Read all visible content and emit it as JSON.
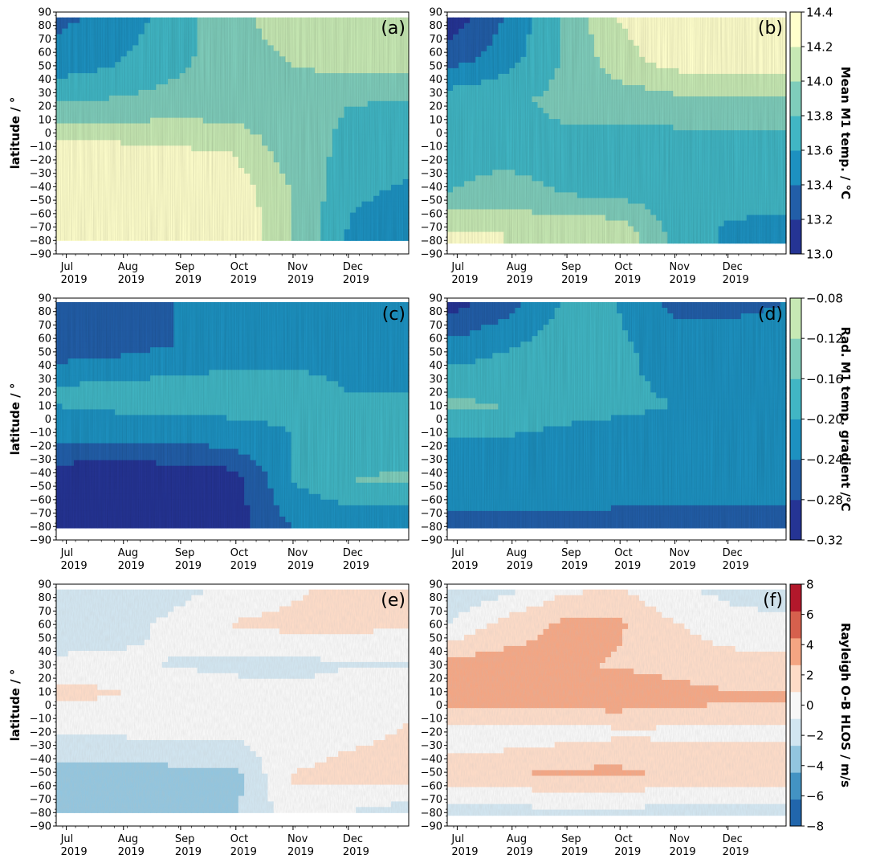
{
  "chart_data": [
    {
      "panel": "(a)",
      "type": "heatmap",
      "ylabel": "latitude / °",
      "x_ticks": [
        "Jul 2019",
        "Aug 2019",
        "Sep 2019",
        "Oct 2019",
        "Nov 2019",
        "Dec 2019"
      ],
      "y_range": [
        -90,
        90
      ],
      "data_coverage_lat": [
        -80,
        86
      ],
      "colormap": "YlGnBu_r",
      "clim": [
        13.0,
        14.4
      ],
      "shared_colorbar": "mean-temp",
      "field_description_rows": [
        {
          "lat": 86,
          "values": [
            13.35,
            13.45,
            13.7,
            13.95,
            14.1,
            14.15,
            14.2
          ]
        },
        {
          "lat": 50,
          "values": [
            13.5,
            13.6,
            13.75,
            13.9,
            14.0,
            14.05,
            14.05
          ]
        },
        {
          "lat": 20,
          "values": [
            13.85,
            13.85,
            13.9,
            13.9,
            13.85,
            13.8,
            13.75
          ]
        },
        {
          "lat": -15,
          "values": [
            14.3,
            14.3,
            14.25,
            14.2,
            13.9,
            13.75,
            13.7
          ]
        },
        {
          "lat": -45,
          "values": [
            14.4,
            14.4,
            14.4,
            14.35,
            14.0,
            13.65,
            13.55
          ]
        },
        {
          "lat": -80,
          "values": [
            14.4,
            14.4,
            14.4,
            14.4,
            14.0,
            13.55,
            13.4
          ]
        }
      ]
    },
    {
      "panel": "(b)",
      "type": "heatmap",
      "x_ticks": [
        "Jul 2019",
        "Aug 2019",
        "Sep 2019",
        "Oct 2019",
        "Nov 2019",
        "Dec 2019"
      ],
      "y_range": [
        -90,
        90
      ],
      "data_coverage_lat": [
        -82,
        86
      ],
      "colormap": "YlGnBu_r",
      "clim": [
        13.0,
        14.4
      ],
      "shared_colorbar": "mean-temp",
      "field_description_rows": [
        {
          "lat": 86,
          "values": [
            13.05,
            13.4,
            13.8,
            14.2,
            14.4,
            14.4,
            14.4
          ]
        },
        {
          "lat": 55,
          "values": [
            13.3,
            13.5,
            13.8,
            14.1,
            14.3,
            14.35,
            14.35
          ]
        },
        {
          "lat": 25,
          "values": [
            13.7,
            13.75,
            13.85,
            13.9,
            13.95,
            13.95,
            13.95
          ]
        },
        {
          "lat": -10,
          "values": [
            13.75,
            13.75,
            13.75,
            13.7,
            13.7,
            13.7,
            13.7
          ]
        },
        {
          "lat": -45,
          "values": [
            13.8,
            13.85,
            13.8,
            13.75,
            13.7,
            13.7,
            13.7
          ]
        },
        {
          "lat": -75,
          "values": [
            14.25,
            14.2,
            14.2,
            14.15,
            13.75,
            13.55,
            13.5
          ]
        }
      ]
    },
    {
      "panel": "(c)",
      "type": "heatmap",
      "ylabel": "latitude / °",
      "x_ticks": [
        "Jul 2019",
        "Aug 2019",
        "Sep 2019",
        "Oct 2019",
        "Nov 2019",
        "Dec 2019"
      ],
      "y_range": [
        -90,
        90
      ],
      "data_coverage_lat": [
        -81,
        87
      ],
      "colormap": "YlGnBu_r",
      "clim": [
        -0.32,
        -0.08
      ],
      "shared_colorbar": "gradient",
      "field_description_rows": [
        {
          "lat": 87,
          "values": [
            -0.27,
            -0.26,
            -0.24,
            -0.22,
            -0.21,
            -0.2,
            -0.2
          ]
        },
        {
          "lat": 55,
          "values": [
            -0.27,
            -0.26,
            -0.24,
            -0.22,
            -0.21,
            -0.21,
            -0.2
          ]
        },
        {
          "lat": 20,
          "values": [
            -0.19,
            -0.18,
            -0.18,
            -0.18,
            -0.19,
            -0.2,
            -0.2
          ]
        },
        {
          "lat": -10,
          "values": [
            -0.22,
            -0.22,
            -0.22,
            -0.21,
            -0.2,
            -0.2,
            -0.2
          ]
        },
        {
          "lat": -45,
          "values": [
            -0.31,
            -0.32,
            -0.31,
            -0.3,
            -0.2,
            -0.16,
            -0.15
          ]
        },
        {
          "lat": -80,
          "values": [
            -0.3,
            -0.31,
            -0.31,
            -0.3,
            -0.24,
            -0.23,
            -0.24
          ]
        }
      ]
    },
    {
      "panel": "(d)",
      "type": "heatmap",
      "x_ticks": [
        "Jul 2019",
        "Aug 2019",
        "Sep 2019",
        "Oct 2019",
        "Nov 2019",
        "Dec 2019"
      ],
      "y_range": [
        -90,
        90
      ],
      "data_coverage_lat": [
        -81,
        87
      ],
      "colormap": "YlGnBu_r",
      "clim": [
        -0.32,
        -0.08
      ],
      "shared_colorbar": "gradient",
      "field_description_rows": [
        {
          "lat": 87,
          "values": [
            -0.3,
            -0.26,
            -0.2,
            -0.2,
            -0.25,
            -0.25,
            -0.24
          ]
        },
        {
          "lat": 50,
          "values": [
            -0.22,
            -0.2,
            -0.18,
            -0.19,
            -0.22,
            -0.22,
            -0.22
          ]
        },
        {
          "lat": 10,
          "values": [
            -0.15,
            -0.16,
            -0.18,
            -0.19,
            -0.2,
            -0.2,
            -0.21
          ]
        },
        {
          "lat": -25,
          "values": [
            -0.22,
            -0.22,
            -0.23,
            -0.23,
            -0.23,
            -0.23,
            -0.23
          ]
        },
        {
          "lat": -55,
          "values": [
            -0.2,
            -0.2,
            -0.21,
            -0.21,
            -0.21,
            -0.22,
            -0.22
          ]
        },
        {
          "lat": -81,
          "values": [
            -0.27,
            -0.27,
            -0.27,
            -0.28,
            -0.28,
            -0.28,
            -0.28
          ]
        }
      ]
    },
    {
      "panel": "(e)",
      "type": "heatmap",
      "ylabel": "latitude / °",
      "x_ticks": [
        "Jul 2019",
        "Aug 2019",
        "Sep 2019",
        "Oct 2019",
        "Nov 2019",
        "Dec 2019"
      ],
      "y_range": [
        -90,
        90
      ],
      "data_coverage_lat": [
        -80,
        86
      ],
      "colormap": "RdBu_r",
      "clim": [
        -8,
        8
      ],
      "shared_colorbar": "ob",
      "field_description_rows": [
        {
          "lat": 86,
          "values": [
            -2.5,
            -2.0,
            -1.5,
            -0.5,
            0.5,
            1.5,
            1.5
          ]
        },
        {
          "lat": 60,
          "values": [
            -2.0,
            -1.5,
            -0.5,
            1.0,
            1.5,
            1.5,
            1.0
          ]
        },
        {
          "lat": 30,
          "values": [
            -0.5,
            -0.5,
            -1.0,
            -1.5,
            -1.5,
            -1.0,
            -1.0
          ]
        },
        {
          "lat": 10,
          "values": [
            1.5,
            1.0,
            0.5,
            0.0,
            -0.5,
            0.0,
            0.5
          ]
        },
        {
          "lat": -20,
          "values": [
            -0.5,
            -0.5,
            -0.5,
            -0.5,
            0.0,
            0.5,
            1.0
          ]
        },
        {
          "lat": -55,
          "values": [
            -4.0,
            -4.0,
            -3.5,
            -3.5,
            1.0,
            1.5,
            1.5
          ]
        },
        {
          "lat": -80,
          "values": [
            -3.0,
            -3.0,
            -3.0,
            -3.0,
            0.0,
            -1.0,
            -2.0
          ]
        }
      ]
    },
    {
      "panel": "(f)",
      "type": "heatmap",
      "x_ticks": [
        "Jul 2019",
        "Aug 2019",
        "Sep 2019",
        "Oct 2019",
        "Nov 2019",
        "Dec 2019"
      ],
      "y_range": [
        -90,
        90
      ],
      "data_coverage_lat": [
        -82,
        86
      ],
      "colormap": "RdBu_r",
      "clim": [
        -8,
        8
      ],
      "shared_colorbar": "ob",
      "field_description_rows": [
        {
          "lat": 86,
          "values": [
            -2.5,
            -1.5,
            0.5,
            1.0,
            -0.5,
            -1.5,
            -2.0
          ]
        },
        {
          "lat": 60,
          "values": [
            -1.0,
            1.5,
            3.0,
            3.0,
            1.0,
            0.0,
            -0.5
          ]
        },
        {
          "lat": 30,
          "values": [
            3.5,
            3.5,
            3.0,
            2.5,
            2.0,
            1.5,
            1.5
          ]
        },
        {
          "lat": 5,
          "values": [
            4.5,
            4.5,
            4.0,
            4.0,
            3.5,
            3.0,
            3.0
          ]
        },
        {
          "lat": -20,
          "values": [
            -0.5,
            -0.5,
            0.0,
            0.5,
            0.5,
            0.5,
            0.5
          ]
        },
        {
          "lat": -50,
          "values": [
            2.5,
            2.5,
            3.0,
            3.0,
            2.5,
            2.0,
            2.0
          ]
        },
        {
          "lat": -80,
          "values": [
            -1.5,
            -1.5,
            -1.5,
            -1.5,
            -1.5,
            -1.5,
            -1.5
          ]
        }
      ]
    }
  ],
  "colorbars": [
    {
      "id": "mean-temp",
      "label": "Mean M1 temp. / °C",
      "tick_labels": [
        "13.0",
        "13.2",
        "13.4",
        "13.6",
        "13.8",
        "14.0",
        "14.2",
        "14.4"
      ],
      "colors": [
        "#253494",
        "#225ea8",
        "#1d91c0",
        "#41b6c4",
        "#7fcdbb",
        "#c7e9b4",
        "#ffffcc"
      ]
    },
    {
      "id": "gradient",
      "label": "Rad. M1 temp. gradient /°C",
      "tick_labels": [
        "−0.32",
        "−0.28",
        "−0.24",
        "−0.20",
        "−0.16",
        "−0.12",
        "−0.08"
      ],
      "colors": [
        "#253494",
        "#225ea8",
        "#1d91c0",
        "#41b6c4",
        "#7fcdbb",
        "#c7e9b4"
      ]
    },
    {
      "id": "ob",
      "label": "Rayleigh O-B HLOS / m/s",
      "tick_labels": [
        "−8",
        "−6",
        "−4",
        "−2",
        "0",
        "2",
        "4",
        "6",
        "8"
      ],
      "colors": [
        "#2166ac",
        "#4393c3",
        "#92c5de",
        "#d1e5f0",
        "#f7f7f7",
        "#fddbc7",
        "#f4a582",
        "#d6604d",
        "#b2182b"
      ]
    }
  ],
  "y_tick_labels": [
    "90",
    "80",
    "70",
    "60",
    "50",
    "40",
    "30",
    "20",
    "10",
    "0",
    "−10",
    "−20",
    "−30",
    "−40",
    "−50",
    "−60",
    "−70",
    "−80",
    "−90"
  ],
  "x_tick_month": [
    "Jul",
    "Aug",
    "Sep",
    "Oct",
    "Nov",
    "Dec"
  ],
  "x_tick_year": "2019"
}
